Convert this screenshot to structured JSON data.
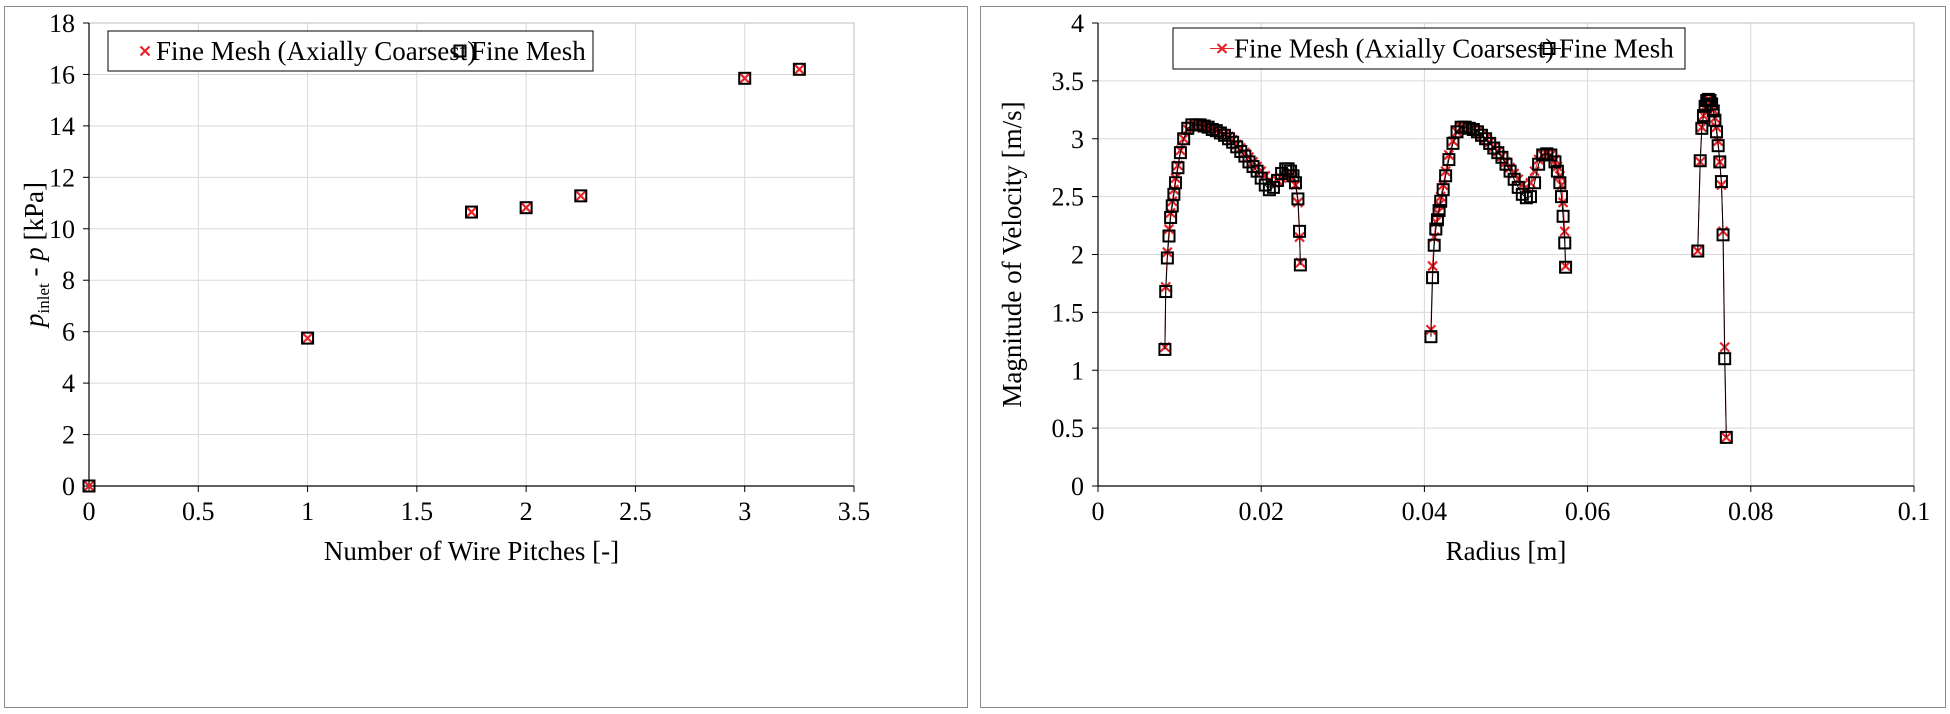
{
  "chart_data": [
    {
      "type": "scatter",
      "xlabel": "Number of Wire Pitches [-]",
      "ylabel": {
        "p1": "p",
        "sub": "inlet",
        "mid": " - ",
        "p2": "p",
        "unit": " [kPa]"
      },
      "xlim": [
        0,
        3.5
      ],
      "ylim": [
        0,
        18
      ],
      "xticks": [
        "0",
        "0.5",
        "1",
        "1.5",
        "2",
        "2.5",
        "3",
        "3.5"
      ],
      "yticks": [
        "0",
        "2",
        "4",
        "6",
        "8",
        "10",
        "12",
        "14",
        "16",
        "18"
      ],
      "grid": true,
      "legend_position": "top",
      "series": [
        {
          "name": "Fine Mesh (Axially Coarsest)",
          "marker": "x",
          "color": "#e8242b",
          "x": [
            0,
            1,
            1.75,
            2,
            2.25,
            3,
            3.25
          ],
          "y": [
            0,
            5.75,
            10.65,
            10.82,
            11.28,
            15.85,
            16.2
          ]
        },
        {
          "name": "Fine Mesh",
          "marker": "square",
          "color": "#000000",
          "x": [
            0,
            1,
            1.75,
            2,
            2.25,
            3,
            3.25
          ],
          "y": [
            0,
            5.75,
            10.65,
            10.82,
            11.28,
            15.85,
            16.2
          ]
        }
      ]
    },
    {
      "type": "line",
      "xlabel": "Radius [m]",
      "ylabel": "Magnitude of Velocity [m/s]",
      "xlim": [
        0,
        0.1
      ],
      "ylim": [
        0,
        4
      ],
      "xticks": [
        "0",
        "0.02",
        "0.04",
        "0.06",
        "0.08",
        "0.1"
      ],
      "yticks": [
        "0",
        "0.5",
        "1",
        "1.5",
        "2",
        "2.5",
        "3",
        "3.5",
        "4"
      ],
      "grid": true,
      "legend_position": "top",
      "series": [
        {
          "name": "Fine Mesh (Axially Coarsest)",
          "marker": "x",
          "color": "#e8242b",
          "x": [
            0.0082,
            0.0083,
            0.0085,
            0.0087,
            0.0089,
            0.0091,
            0.0093,
            0.0095,
            0.0098,
            0.0101,
            0.0105,
            0.011,
            0.0115,
            0.012,
            0.0125,
            0.013,
            0.0135,
            0.014,
            0.0145,
            0.015,
            0.0155,
            0.016,
            0.0165,
            0.017,
            0.0175,
            0.018,
            0.0185,
            0.019,
            0.0195,
            0.02,
            0.0205,
            0.021,
            0.0215,
            0.022,
            0.0225,
            0.023,
            0.0233,
            0.0236,
            0.0239,
            0.0242,
            0.0245,
            0.0247,
            0.0248,
            0.0408,
            0.041,
            0.0412,
            0.0414,
            0.0416,
            0.0418,
            0.042,
            0.0423,
            0.0426,
            0.043,
            0.0435,
            0.044,
            0.0445,
            0.045,
            0.0455,
            0.046,
            0.0465,
            0.047,
            0.0475,
            0.048,
            0.0485,
            0.049,
            0.0495,
            0.05,
            0.0505,
            0.051,
            0.0515,
            0.052,
            0.0525,
            0.053,
            0.0535,
            0.054,
            0.0545,
            0.055,
            0.0555,
            0.056,
            0.0563,
            0.0566,
            0.0568,
            0.057,
            0.0572,
            0.0573,
            0.0735,
            0.0738,
            0.074,
            0.0742,
            0.0744,
            0.0746,
            0.0748,
            0.075,
            0.0752,
            0.0754,
            0.0756,
            0.0758,
            0.076,
            0.0762,
            0.0764,
            0.0766,
            0.0768,
            0.077
          ],
          "y": [
            1.2,
            1.72,
            2.02,
            2.22,
            2.36,
            2.46,
            2.56,
            2.66,
            2.77,
            2.9,
            3.0,
            3.08,
            3.11,
            3.12,
            3.12,
            3.11,
            3.1,
            3.09,
            3.08,
            3.06,
            3.04,
            3.02,
            2.99,
            2.95,
            2.92,
            2.88,
            2.84,
            2.8,
            2.76,
            2.72,
            2.68,
            2.64,
            2.62,
            2.64,
            2.66,
            2.68,
            2.7,
            2.68,
            2.66,
            2.6,
            2.45,
            2.15,
            1.93,
            1.35,
            1.9,
            2.15,
            2.28,
            2.36,
            2.43,
            2.5,
            2.6,
            2.72,
            2.86,
            2.98,
            3.06,
            3.1,
            3.1,
            3.09,
            3.08,
            3.06,
            3.03,
            3.0,
            2.97,
            2.93,
            2.89,
            2.85,
            2.8,
            2.75,
            2.7,
            2.65,
            2.6,
            2.58,
            2.62,
            2.72,
            2.82,
            2.86,
            2.87,
            2.86,
            2.82,
            2.76,
            2.68,
            2.6,
            2.45,
            2.2,
            1.9,
            2.03,
            2.8,
            3.1,
            3.2,
            3.28,
            3.33,
            3.34,
            3.33,
            3.3,
            3.25,
            3.18,
            3.1,
            2.98,
            2.8,
            2.6,
            2.2,
            1.2,
            0.42
          ]
        },
        {
          "name": "Fine Mesh",
          "marker": "square",
          "color": "#000000",
          "x": [
            0.0082,
            0.0083,
            0.0085,
            0.0087,
            0.0089,
            0.0091,
            0.0093,
            0.0095,
            0.0098,
            0.0101,
            0.0105,
            0.011,
            0.0115,
            0.012,
            0.0125,
            0.013,
            0.0135,
            0.014,
            0.0145,
            0.015,
            0.0155,
            0.016,
            0.0165,
            0.017,
            0.0175,
            0.018,
            0.0185,
            0.019,
            0.0195,
            0.02,
            0.0205,
            0.021,
            0.0215,
            0.022,
            0.0225,
            0.023,
            0.0233,
            0.0236,
            0.0239,
            0.0242,
            0.0245,
            0.0247,
            0.0248,
            0.0408,
            0.041,
            0.0412,
            0.0414,
            0.0416,
            0.0418,
            0.042,
            0.0423,
            0.0426,
            0.043,
            0.0435,
            0.044,
            0.0445,
            0.045,
            0.0455,
            0.046,
            0.0465,
            0.047,
            0.0475,
            0.048,
            0.0485,
            0.049,
            0.0495,
            0.05,
            0.0505,
            0.051,
            0.0515,
            0.052,
            0.0525,
            0.053,
            0.0535,
            0.054,
            0.0545,
            0.055,
            0.0555,
            0.056,
            0.0563,
            0.0566,
            0.0568,
            0.057,
            0.0572,
            0.0573,
            0.0735,
            0.0738,
            0.074,
            0.0742,
            0.0744,
            0.0746,
            0.0748,
            0.075,
            0.0752,
            0.0754,
            0.0756,
            0.0758,
            0.076,
            0.0762,
            0.0764,
            0.0766,
            0.0768,
            0.077
          ],
          "y": [
            1.18,
            1.68,
            1.97,
            2.16,
            2.32,
            2.42,
            2.52,
            2.62,
            2.75,
            2.88,
            3.0,
            3.09,
            3.12,
            3.12,
            3.12,
            3.11,
            3.1,
            3.08,
            3.07,
            3.05,
            3.03,
            3.0,
            2.97,
            2.93,
            2.89,
            2.85,
            2.8,
            2.76,
            2.72,
            2.66,
            2.6,
            2.56,
            2.58,
            2.64,
            2.7,
            2.74,
            2.74,
            2.72,
            2.68,
            2.62,
            2.48,
            2.2,
            1.91,
            1.29,
            1.8,
            2.08,
            2.22,
            2.3,
            2.38,
            2.46,
            2.56,
            2.68,
            2.82,
            2.96,
            3.06,
            3.1,
            3.1,
            3.09,
            3.08,
            3.06,
            3.03,
            3.0,
            2.96,
            2.92,
            2.88,
            2.84,
            2.78,
            2.72,
            2.65,
            2.58,
            2.52,
            2.49,
            2.5,
            2.62,
            2.78,
            2.86,
            2.87,
            2.86,
            2.8,
            2.72,
            2.62,
            2.5,
            2.33,
            2.1,
            1.89,
            2.03,
            2.81,
            3.09,
            3.2,
            3.28,
            3.33,
            3.34,
            3.33,
            3.3,
            3.24,
            3.16,
            3.06,
            2.94,
            2.8,
            2.63,
            2.17,
            1.1,
            0.42
          ]
        }
      ]
    }
  ]
}
